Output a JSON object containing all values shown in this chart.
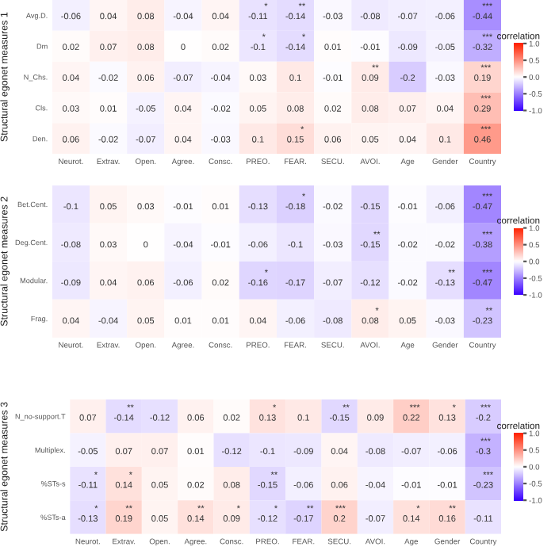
{
  "chart_data": [
    {
      "type": "heatmap",
      "ylabel": "Structural egonet measures 1",
      "clabel": "correlation",
      "clim": [
        -1,
        1
      ],
      "cticks": [
        {
          "value": 1,
          "label": "1.0"
        },
        {
          "value": 0.5,
          "label": "0.5"
        },
        {
          "value": 0,
          "label": "0.0"
        },
        {
          "value": -0.5,
          "label": "-0.5"
        },
        {
          "value": -1,
          "label": "-1.0"
        }
      ],
      "categories": [
        "Neurot.",
        "Extrav.",
        "Open.",
        "Agree.",
        "Consc.",
        "PREO.",
        "FEAR.",
        "SECU.",
        "AVOI.",
        "Age",
        "Gender",
        "Country"
      ],
      "y_categories": [
        "Avg.D.",
        "Dm",
        "N_Chs.",
        "Cls.",
        "Den."
      ],
      "cells": [
        [
          -0.06,
          0.04,
          0.08,
          -0.04,
          0.04,
          -0.11,
          -0.14,
          -0.03,
          -0.08,
          -0.07,
          -0.06,
          -0.44
        ],
        [
          0.02,
          0.07,
          0.08,
          0,
          0.02,
          -0.1,
          -0.14,
          0.01,
          -0.01,
          -0.09,
          -0.05,
          -0.32
        ],
        [
          0.04,
          -0.02,
          0.06,
          -0.07,
          -0.04,
          0.03,
          0.1,
          -0.01,
          0.09,
          -0.2,
          -0.03,
          0.19
        ],
        [
          0.03,
          0.01,
          -0.05,
          0.04,
          -0.02,
          0.05,
          0.08,
          0.02,
          0.08,
          0.07,
          0.04,
          0.29
        ],
        [
          0.06,
          -0.02,
          -0.07,
          0.04,
          -0.03,
          0.1,
          0.15,
          0.06,
          0.05,
          0.04,
          0.1,
          0.46
        ]
      ],
      "cell_labels": [
        [
          "-0.06",
          "0.04",
          "0.08",
          "-0.04",
          "0.04",
          "*\n-0.11",
          "**\n-0.14",
          "-0.03",
          "-0.08",
          "-0.07",
          "-0.06",
          "***\n-0.44"
        ],
        [
          "0.02",
          "0.07",
          "0.08",
          "0",
          "0.02",
          "*\n-0.1",
          "*\n-0.14",
          "0.01",
          "-0.01",
          "-0.09",
          "-0.05",
          "***\n-0.32"
        ],
        [
          "0.04",
          "-0.02",
          "0.06",
          "-0.07",
          "-0.04",
          "0.03",
          "0.1",
          "-0.01",
          "**\n0.09",
          "-0.2",
          "-0.03",
          "***\n0.19"
        ],
        [
          "0.03",
          "0.01",
          "-0.05",
          "0.04",
          "-0.02",
          "0.05",
          "0.08",
          "0.02",
          "0.08",
          "0.07",
          "0.04",
          "***\n0.29"
        ],
        [
          "0.06",
          "-0.02",
          "-0.07",
          "0.04",
          "-0.03",
          "0.1",
          "*\n0.15",
          "0.06",
          "0.05",
          "0.04",
          "0.1",
          "***\n0.46"
        ]
      ]
    },
    {
      "type": "heatmap",
      "ylabel": "Structural egonet measures 2",
      "clabel": "correlation",
      "clim": [
        -1,
        1
      ],
      "cticks": [
        {
          "value": 1,
          "label": "1.0"
        },
        {
          "value": 0.5,
          "label": "0.5"
        },
        {
          "value": 0,
          "label": "0.0"
        },
        {
          "value": -0.5,
          "label": "-0.5"
        },
        {
          "value": -1,
          "label": "-1.0"
        }
      ],
      "categories": [
        "Neurot.",
        "Extrav.",
        "Open.",
        "Agree.",
        "Consc.",
        "PREO.",
        "FEAR.",
        "SECU.",
        "AVOI.",
        "Age",
        "Gender",
        "Country"
      ],
      "y_categories": [
        "Bet.Cent.",
        "Deg.Cent.",
        "Modular.",
        "Frag."
      ],
      "cells": [
        [
          -0.1,
          0.05,
          0.03,
          -0.01,
          0.01,
          -0.13,
          -0.18,
          -0.02,
          -0.15,
          -0.01,
          -0.06,
          -0.47
        ],
        [
          -0.08,
          0.03,
          0,
          -0.04,
          -0.01,
          -0.06,
          -0.1,
          -0.03,
          -0.15,
          -0.02,
          -0.02,
          -0.38
        ],
        [
          -0.09,
          0.04,
          0.06,
          -0.06,
          0.02,
          -0.16,
          -0.17,
          -0.07,
          -0.12,
          -0.02,
          -0.13,
          -0.47
        ],
        [
          0.04,
          -0.04,
          0.05,
          0.01,
          0.01,
          0.04,
          -0.06,
          -0.08,
          0.08,
          0.05,
          -0.03,
          -0.23
        ]
      ],
      "cell_labels": [
        [
          "-0.1",
          "0.05",
          "0.03",
          "-0.01",
          "0.01",
          "-0.13",
          "*\n-0.18",
          "-0.02",
          "-0.15",
          "-0.01",
          "-0.06",
          "***\n-0.47"
        ],
        [
          "-0.08",
          "0.03",
          "0",
          "-0.04",
          "-0.01",
          "-0.06",
          "-0.1",
          "-0.03",
          "**\n-0.15",
          "-0.02",
          "-0.02",
          "***\n-0.38"
        ],
        [
          "-0.09",
          "0.04",
          "0.06",
          "-0.06",
          "0.02",
          "*\n-0.16",
          "-0.17",
          "-0.07",
          "-0.12",
          "-0.02",
          "**\n-0.13",
          "***\n-0.47"
        ],
        [
          "0.04",
          "-0.04",
          "0.05",
          "0.01",
          "0.01",
          "0.04",
          "-0.06",
          "-0.08",
          "*\n0.08",
          "0.05",
          "-0.03",
          "**\n-0.23"
        ]
      ]
    },
    {
      "type": "heatmap",
      "ylabel": "Structural egonet measures 3",
      "clabel": "correlation",
      "clim": [
        -1,
        1
      ],
      "cticks": [
        {
          "value": 1,
          "label": "1.0"
        },
        {
          "value": 0.5,
          "label": "0.5"
        },
        {
          "value": 0,
          "label": "0.0"
        },
        {
          "value": -0.5,
          "label": "-0.5"
        },
        {
          "value": -1,
          "label": "-1.0"
        }
      ],
      "categories": [
        "Neurot.",
        "Extrav.",
        "Open.",
        "Agree.",
        "Consc.",
        "PREO.",
        "FEAR.",
        "SECU.",
        "AVOI.",
        "Age",
        "Gender",
        "Country"
      ],
      "y_categories": [
        "N_no-support.T",
        "Multiplex.",
        "%STs-s",
        "%STs-a"
      ],
      "cells": [
        [
          0.07,
          -0.14,
          -0.12,
          0.06,
          0.02,
          0.13,
          0.1,
          -0.15,
          0.09,
          0.22,
          0.13,
          -0.2
        ],
        [
          -0.05,
          0.07,
          0.07,
          0.01,
          -0.12,
          -0.1,
          -0.09,
          0.04,
          -0.08,
          -0.07,
          -0.06,
          -0.3
        ],
        [
          -0.11,
          0.14,
          0.05,
          0.02,
          0.08,
          -0.15,
          -0.06,
          0.06,
          -0.04,
          -0.01,
          -0.01,
          -0.23
        ],
        [
          -0.13,
          0.19,
          0.05,
          0.14,
          0.09,
          -0.12,
          -0.17,
          0.2,
          -0.07,
          0.14,
          0.16,
          -0.11
        ]
      ],
      "cell_labels": [
        [
          "0.07",
          "**\n-0.14",
          "-0.12",
          "0.06",
          "0.02",
          "*\n0.13",
          "0.1",
          "**\n-0.15",
          "0.09",
          "***\n0.22",
          "*\n0.13",
          "***\n-0.2"
        ],
        [
          "-0.05",
          "0.07",
          "0.07",
          "0.01",
          "-0.12",
          "-0.1",
          "-0.09",
          "0.04",
          "-0.08",
          "-0.07",
          "-0.06",
          "***\n-0.3"
        ],
        [
          "*\n-0.11",
          "*\n0.14",
          "0.05",
          "0.02",
          "0.08",
          "**\n-0.15",
          "-0.06",
          "0.06",
          "-0.04",
          "-0.01",
          "-0.01",
          "***\n-0.23"
        ],
        [
          "*\n-0.13",
          "**\n0.19",
          "0.05",
          "**\n0.14",
          "*\n0.09",
          "*\n-0.12",
          "**\n-0.17",
          "***\n0.2",
          "-0.07",
          "*\n0.14",
          "**\n0.16",
          "-0.11"
        ]
      ]
    }
  ]
}
